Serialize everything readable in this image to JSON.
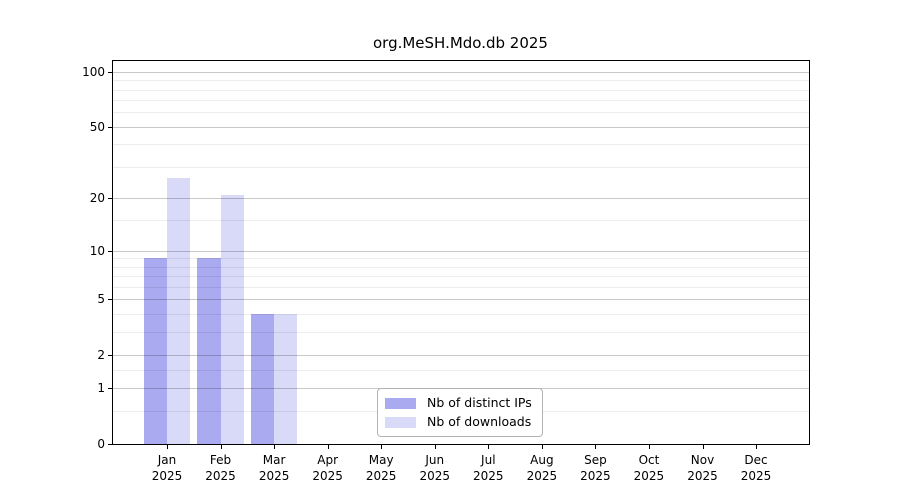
{
  "chart_data": {
    "type": "bar",
    "title": "org.MeSH.Mdo.db 2025",
    "categories": [
      "Jan",
      "Feb",
      "Mar",
      "Apr",
      "May",
      "Jun",
      "Jul",
      "Aug",
      "Sep",
      "Oct",
      "Nov",
      "Dec"
    ],
    "year": "2025",
    "series": [
      {
        "name": "Nb of distinct IPs",
        "color": "#aaaaf0",
        "values": [
          9,
          9,
          4,
          0,
          0,
          0,
          0,
          0,
          0,
          0,
          0,
          0
        ]
      },
      {
        "name": "Nb of downloads",
        "color": "#d9d9f8",
        "values": [
          26,
          21,
          4,
          0,
          0,
          0,
          0,
          0,
          0,
          0,
          0,
          0
        ]
      }
    ],
    "y_scale": "log1p",
    "ylim": [
      0,
      100
    ],
    "y_axis_ticks": [
      100,
      50,
      20,
      10,
      5,
      2,
      1,
      0
    ],
    "y_minor_gridlines": [
      0.5,
      1.5,
      3,
      4,
      6,
      7,
      8,
      9,
      15,
      30,
      40,
      60,
      70,
      80,
      90
    ],
    "grid": true,
    "legend_position": "bottom-center-inside",
    "colors": {
      "grid_major": "#c9c9c9",
      "grid_minor": "#ececec",
      "axis": "#000000",
      "background": "#ffffff"
    }
  }
}
